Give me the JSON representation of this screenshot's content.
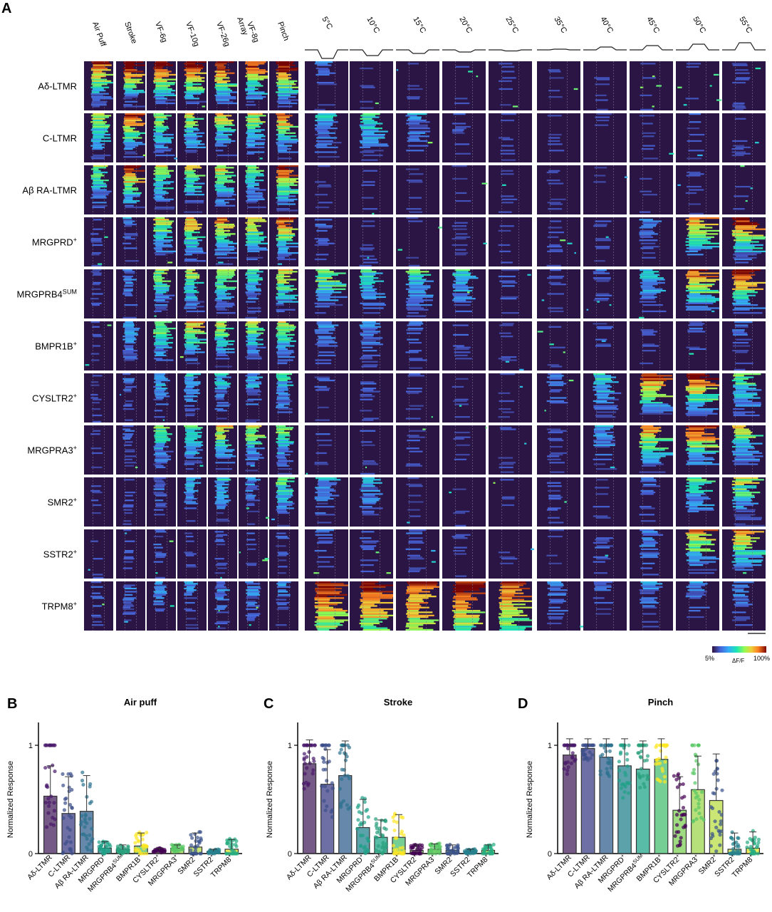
{
  "figure": {
    "panel_a_letter": "A",
    "panel_b_letter": "B",
    "panel_c_letter": "C",
    "panel_d_letter": "D"
  },
  "chart_data": [
    {
      "type": "heatmap",
      "panel": "A",
      "mech_stimuli": [
        "Air Puff",
        "Stroke",
        "VF-6g",
        "VF-10g",
        "VF-26g",
        "VF-8g Array",
        "Pinch"
      ],
      "cold_stimuli": [
        "5°C",
        "10°C",
        "15°C",
        "20°C",
        "25°C"
      ],
      "heat_stimuli": [
        "35°C",
        "40°C",
        "45°C",
        "50°C",
        "55°C"
      ],
      "rows": [
        {
          "label": "Aδ-LTMR",
          "mech": [
            0.85,
            1.0,
            0.95,
            1.0,
            1.0,
            0.9,
            1.0
          ],
          "cold": [
            0.15,
            0,
            0,
            0,
            0
          ],
          "heat": [
            0,
            0,
            0,
            0,
            0
          ]
        },
        {
          "label": "C-LTMR",
          "mech": [
            0.6,
            0.85,
            0.6,
            0.6,
            0.65,
            0.6,
            0.8
          ],
          "cold": [
            0.35,
            0.45,
            0.25,
            0.05,
            0
          ],
          "heat": [
            0,
            0,
            0,
            0.05,
            0
          ]
        },
        {
          "label": "Aβ RA-LTMR",
          "mech": [
            0.5,
            0.95,
            0.6,
            0.6,
            0.65,
            0.55,
            0.95
          ],
          "cold": [
            0,
            0,
            0,
            0,
            0
          ],
          "heat": [
            0,
            0,
            0,
            0,
            0
          ]
        },
        {
          "label": "MRGPRD+",
          "mech": [
            0.05,
            0.2,
            0.6,
            0.75,
            0.8,
            0.7,
            0.85
          ],
          "cold": [
            0.1,
            0,
            0,
            0,
            0
          ],
          "heat": [
            0.05,
            0.05,
            0.15,
            0.75,
            0.95
          ]
        },
        {
          "label": "MRGPRB4 SUM",
          "mech": [
            0.05,
            0.2,
            0.55,
            0.6,
            0.6,
            0.4,
            0.7
          ],
          "cold": [
            0.6,
            0.4,
            0.45,
            0.4,
            0.1
          ],
          "heat": [
            0.05,
            0.1,
            0.4,
            0.85,
            1.0
          ]
        },
        {
          "label": "BMPR1B+",
          "mech": [
            0.05,
            0.3,
            0.6,
            0.7,
            0.6,
            0.55,
            0.6
          ],
          "cold": [
            0.2,
            0.25,
            0.1,
            0.05,
            0
          ],
          "heat": [
            0,
            0.05,
            0.05,
            0.1,
            0.1
          ]
        },
        {
          "label": "CYSLTR2+",
          "mech": [
            0.02,
            0.1,
            0.3,
            0.35,
            0.35,
            0.3,
            0.4
          ],
          "cold": [
            0.05,
            0.05,
            0.05,
            0,
            0
          ],
          "heat": [
            0.15,
            0.4,
            0.9,
            0.95,
            0.5
          ]
        },
        {
          "label": "MRGPRA3+",
          "mech": [
            0.02,
            0.1,
            0.5,
            0.5,
            0.65,
            0.6,
            0.55
          ],
          "cold": [
            0.05,
            0.05,
            0.05,
            0,
            0
          ],
          "heat": [
            0.05,
            0.3,
            0.8,
            0.9,
            0.6
          ]
        },
        {
          "label": "SMR2+",
          "mech": [
            0.02,
            0.05,
            0.15,
            0.3,
            0.35,
            0.2,
            0.5
          ],
          "cold": [
            0.3,
            0.25,
            0.05,
            0,
            0
          ],
          "heat": [
            0.05,
            0.05,
            0.1,
            0.5,
            0.6
          ]
        },
        {
          "label": "SSTR2+",
          "mech": [
            0.01,
            0.05,
            0.1,
            0.05,
            0.05,
            0.05,
            0.1
          ],
          "cold": [
            0.1,
            0.1,
            0.1,
            0,
            0
          ],
          "heat": [
            0,
            0.1,
            0.2,
            0.75,
            0.8
          ]
        },
        {
          "label": "TRPM8+",
          "mech": [
            0.1,
            0.15,
            0.2,
            0.2,
            0.2,
            0.2,
            0.2
          ],
          "cold": [
            0.95,
            0.95,
            0.9,
            0.9,
            0.85
          ],
          "heat": [
            0.2,
            0.15,
            0.2,
            0.2,
            0.2
          ]
        }
      ],
      "colorbar": {
        "min_label": "5%",
        "max_label": "100%",
        "label": "ΔF/F"
      }
    },
    {
      "type": "bar",
      "panel": "B",
      "title": "Air puff",
      "ylabel": "Normalized Response",
      "ylim": [
        0,
        1
      ],
      "yticks": [
        "0",
        "1"
      ],
      "categories": [
        "Aδ-LTMR",
        "C-LTMR",
        "Aβ RA-LTMR",
        "MRGPRD+",
        "MRGPRB4 SUM",
        "BMPR1B+",
        "CYSLTR2+",
        "MRGPRA3+",
        "SMR2+",
        "SSTR2+",
        "TRPM8+"
      ],
      "values": [
        0.53,
        0.37,
        0.39,
        0.05,
        0.04,
        0.07,
        0.03,
        0.05,
        0.06,
        0.02,
        0.04
      ],
      "errors": [
        0.28,
        0.34,
        0.33,
        0.06,
        0.04,
        0.12,
        0.02,
        0.03,
        0.13,
        0.02,
        0.09
      ]
    },
    {
      "type": "bar",
      "panel": "C",
      "title": "Stroke",
      "ylabel": "Normalized Response",
      "ylim": [
        0,
        1
      ],
      "yticks": [
        "0",
        "1"
      ],
      "categories": [
        "Aδ-LTMR",
        "C-LTMR",
        "Aβ RA-LTMR",
        "MRGPRD+",
        "MRGPRB4 SUM",
        "BMPR1B+",
        "CYSLTR2+",
        "MRGPRA3+",
        "SMR2+",
        "SSTR2+",
        "TRPM8+"
      ],
      "values": [
        0.83,
        0.64,
        0.72,
        0.24,
        0.15,
        0.15,
        0.03,
        0.04,
        0.03,
        0.02,
        0.03
      ],
      "errors": [
        0.22,
        0.32,
        0.32,
        0.26,
        0.16,
        0.21,
        0.05,
        0.05,
        0.05,
        0.02,
        0.05
      ]
    },
    {
      "type": "bar",
      "panel": "D",
      "title": "Pinch",
      "ylabel": "Normalized Response",
      "ylim": [
        0,
        1
      ],
      "yticks": [
        "0",
        "1"
      ],
      "categories": [
        "Aδ-LTMR",
        "C-LTMR",
        "Aβ RA-LTMR",
        "MRGPRD+",
        "MRGPRB4 SUM",
        "BMPR1B+",
        "CYSLTR2+",
        "MRGPRA3+",
        "SMR2+",
        "SSTR2+",
        "TRPM8+"
      ],
      "values": [
        0.91,
        0.97,
        0.89,
        0.81,
        0.78,
        0.87,
        0.4,
        0.59,
        0.49,
        0.04,
        0.05
      ],
      "errors": [
        0.17,
        0.1,
        0.17,
        0.27,
        0.26,
        0.21,
        0.31,
        0.31,
        0.43,
        0.15,
        0.15
      ]
    }
  ],
  "colors": {
    "bg": "#ffffff",
    "heatmap_bg": "#2b1545",
    "bar_palette": [
      "#47225e",
      "#3d3f86",
      "#33628f",
      "#26838d",
      "#20a58a",
      "#47bd6f",
      "#7fcf56",
      "#9dd74e",
      "#b9de47",
      "#d2e240",
      "#ede726"
    ],
    "point_palette": [
      "#48186a",
      "#3c4f8a",
      "#2c728e",
      "#1fa187",
      "#2a9f7c",
      "#fde725",
      "#440154",
      "#58c765",
      "#3b528b",
      "#26828e",
      "#27ad81"
    ]
  }
}
